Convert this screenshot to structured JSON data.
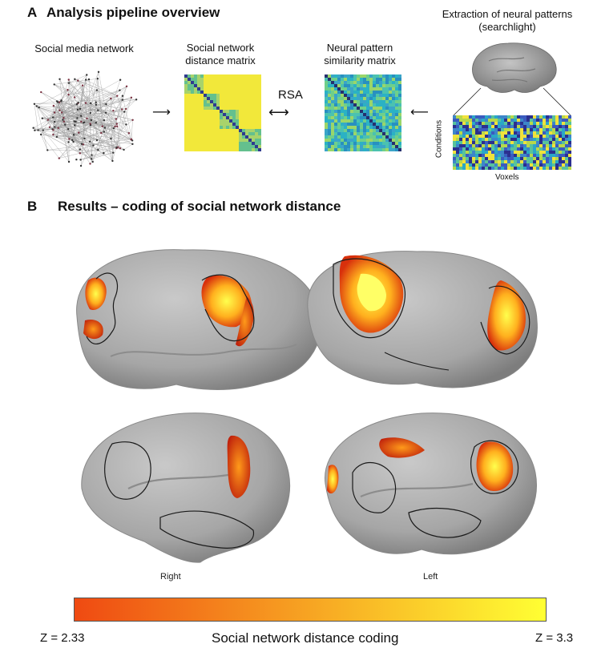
{
  "panel_a": {
    "letter": "A",
    "title": "Analysis pipeline overview",
    "network_caption": "Social media network",
    "distance_matrix_caption": [
      "Social network",
      "distance matrix"
    ],
    "rsa_label": "RSA",
    "similarity_matrix_caption": [
      "Neural pattern",
      "similarity matrix"
    ],
    "extraction_caption": [
      "Extraction of neural patterns",
      "(searchlight)"
    ],
    "conditions_label": "Conditions",
    "voxels_label": "Voxels"
  },
  "panel_b": {
    "letter": "B",
    "title": "Results – coding of social network distance",
    "right_label": "Right",
    "left_label": "Left"
  },
  "colorbar": {
    "min_label": "Z = 2.33",
    "max_label": "Z = 3.3",
    "title": "Social network distance coding",
    "color_low": "#ef4a12",
    "color_high": "#ffff33"
  },
  "colors": {
    "brain_gray": "#a8a8a8",
    "matrix_yellow": "#f2e83a",
    "matrix_teal": "#2bb2c4"
  }
}
